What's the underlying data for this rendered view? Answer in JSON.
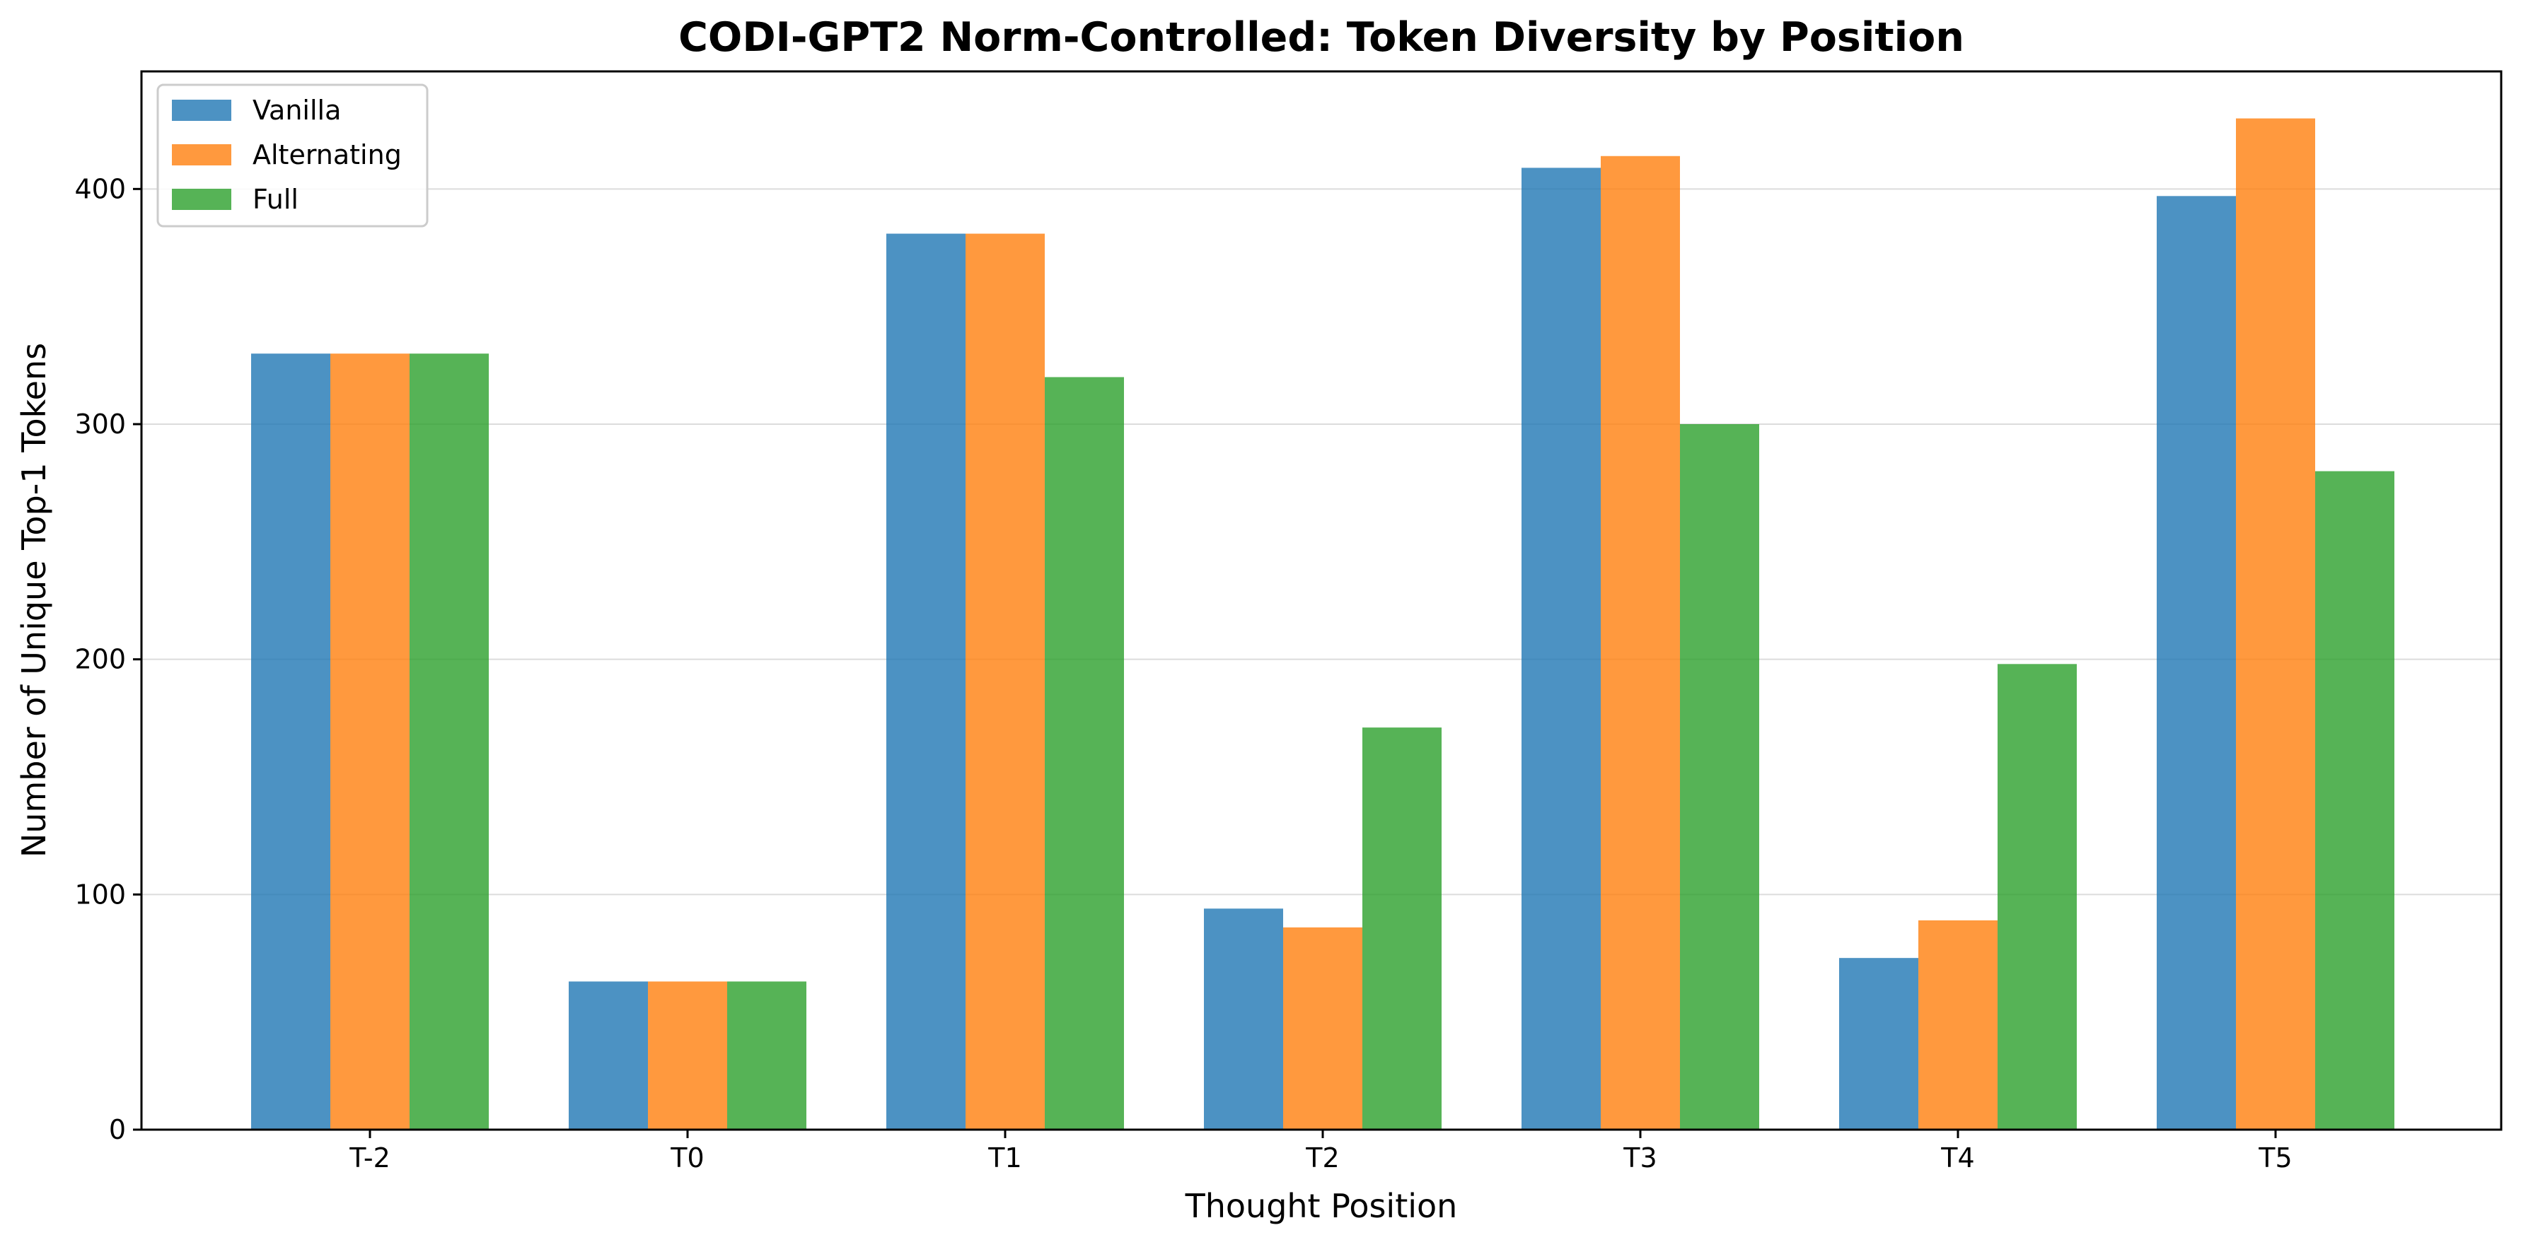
{
  "chart_data": {
    "type": "bar",
    "title": "CODI-GPT2 Norm-Controlled: Token Diversity by Position",
    "xlabel": "Thought Position",
    "ylabel": "Number of Unique Top-1 Tokens",
    "categories": [
      "T-2",
      "T0",
      "T1",
      "T2",
      "T3",
      "T4",
      "T5"
    ],
    "series": [
      {
        "name": "Vanilla",
        "color": "#1f77b4",
        "values": [
          330,
          63,
          381,
          94,
          409,
          73,
          397
        ]
      },
      {
        "name": "Alternating",
        "color": "#ff7f0e",
        "values": [
          330,
          63,
          381,
          86,
          414,
          89,
          430
        ]
      },
      {
        "name": "Full",
        "color": "#2ca02c",
        "values": [
          330,
          63,
          320,
          171,
          300,
          198,
          280
        ]
      }
    ],
    "ylim": [
      0,
      450
    ],
    "yticks": [
      0,
      100,
      200,
      300,
      400
    ],
    "grid": "horizontal",
    "legend_position": "top-left"
  }
}
